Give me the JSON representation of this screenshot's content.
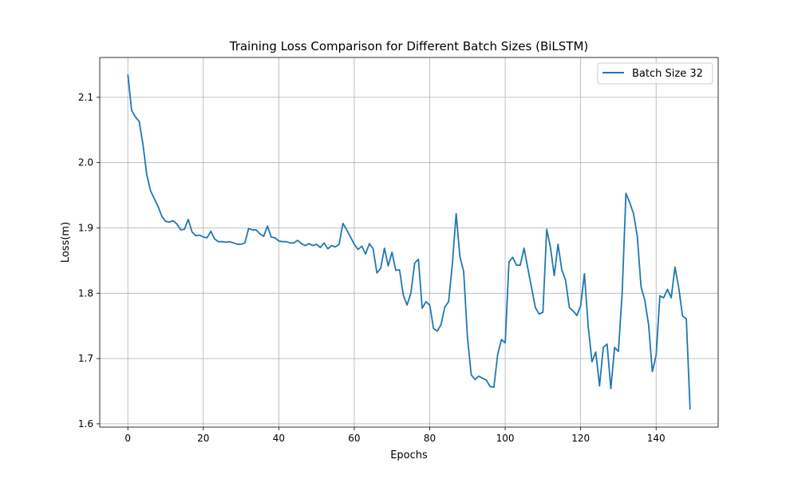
{
  "chart_data": {
    "type": "line",
    "title": "Training Loss Comparison for Different Batch Sizes (BiLSTM)",
    "xlabel": "Epochs",
    "ylabel": "Loss(m)",
    "xlim": [
      -7.45,
      156.45
    ],
    "ylim": [
      1.595,
      2.161
    ],
    "xticks": [
      0,
      20,
      40,
      60,
      80,
      100,
      120,
      140
    ],
    "yticks": [
      1.6,
      1.7,
      1.8,
      1.9,
      2.0,
      2.1
    ],
    "grid": true,
    "legend_position": "top-right",
    "series": [
      {
        "name": "Batch Size 32",
        "color": "#1f77b4",
        "values": [
          2.135,
          2.08,
          2.07,
          2.063,
          2.028,
          1.982,
          1.957,
          1.945,
          1.933,
          1.918,
          1.91,
          1.909,
          1.911,
          1.906,
          1.897,
          1.898,
          1.913,
          1.894,
          1.888,
          1.889,
          1.886,
          1.885,
          1.895,
          1.883,
          1.879,
          1.879,
          1.878,
          1.879,
          1.877,
          1.875,
          1.875,
          1.877,
          1.899,
          1.897,
          1.897,
          1.891,
          1.887,
          1.903,
          1.886,
          1.885,
          1.88,
          1.879,
          1.879,
          1.877,
          1.877,
          1.881,
          1.876,
          1.873,
          1.876,
          1.873,
          1.875,
          1.87,
          1.877,
          1.868,
          1.873,
          1.871,
          1.875,
          1.907,
          1.897,
          1.886,
          1.875,
          1.867,
          1.872,
          1.86,
          1.876,
          1.868,
          1.831,
          1.838,
          1.869,
          1.842,
          1.863,
          1.835,
          1.836,
          1.797,
          1.782,
          1.8,
          1.846,
          1.852,
          1.777,
          1.787,
          1.782,
          1.746,
          1.742,
          1.752,
          1.779,
          1.787,
          1.845,
          1.922,
          1.856,
          1.833,
          1.732,
          1.675,
          1.668,
          1.673,
          1.67,
          1.667,
          1.657,
          1.656,
          1.706,
          1.729,
          1.724,
          1.848,
          1.855,
          1.843,
          1.843,
          1.869,
          1.838,
          1.808,
          1.778,
          1.768,
          1.771,
          1.898,
          1.87,
          1.827,
          1.875,
          1.836,
          1.82,
          1.778,
          1.773,
          1.766,
          1.781,
          1.83,
          1.749,
          1.695,
          1.71,
          1.658,
          1.717,
          1.722,
          1.654,
          1.717,
          1.711,
          1.8,
          1.953,
          1.939,
          1.922,
          1.888,
          1.81,
          1.789,
          1.752,
          1.68,
          1.705,
          1.796,
          1.793,
          1.806,
          1.793,
          1.84,
          1.808,
          1.765,
          1.761,
          1.622
        ]
      }
    ]
  }
}
